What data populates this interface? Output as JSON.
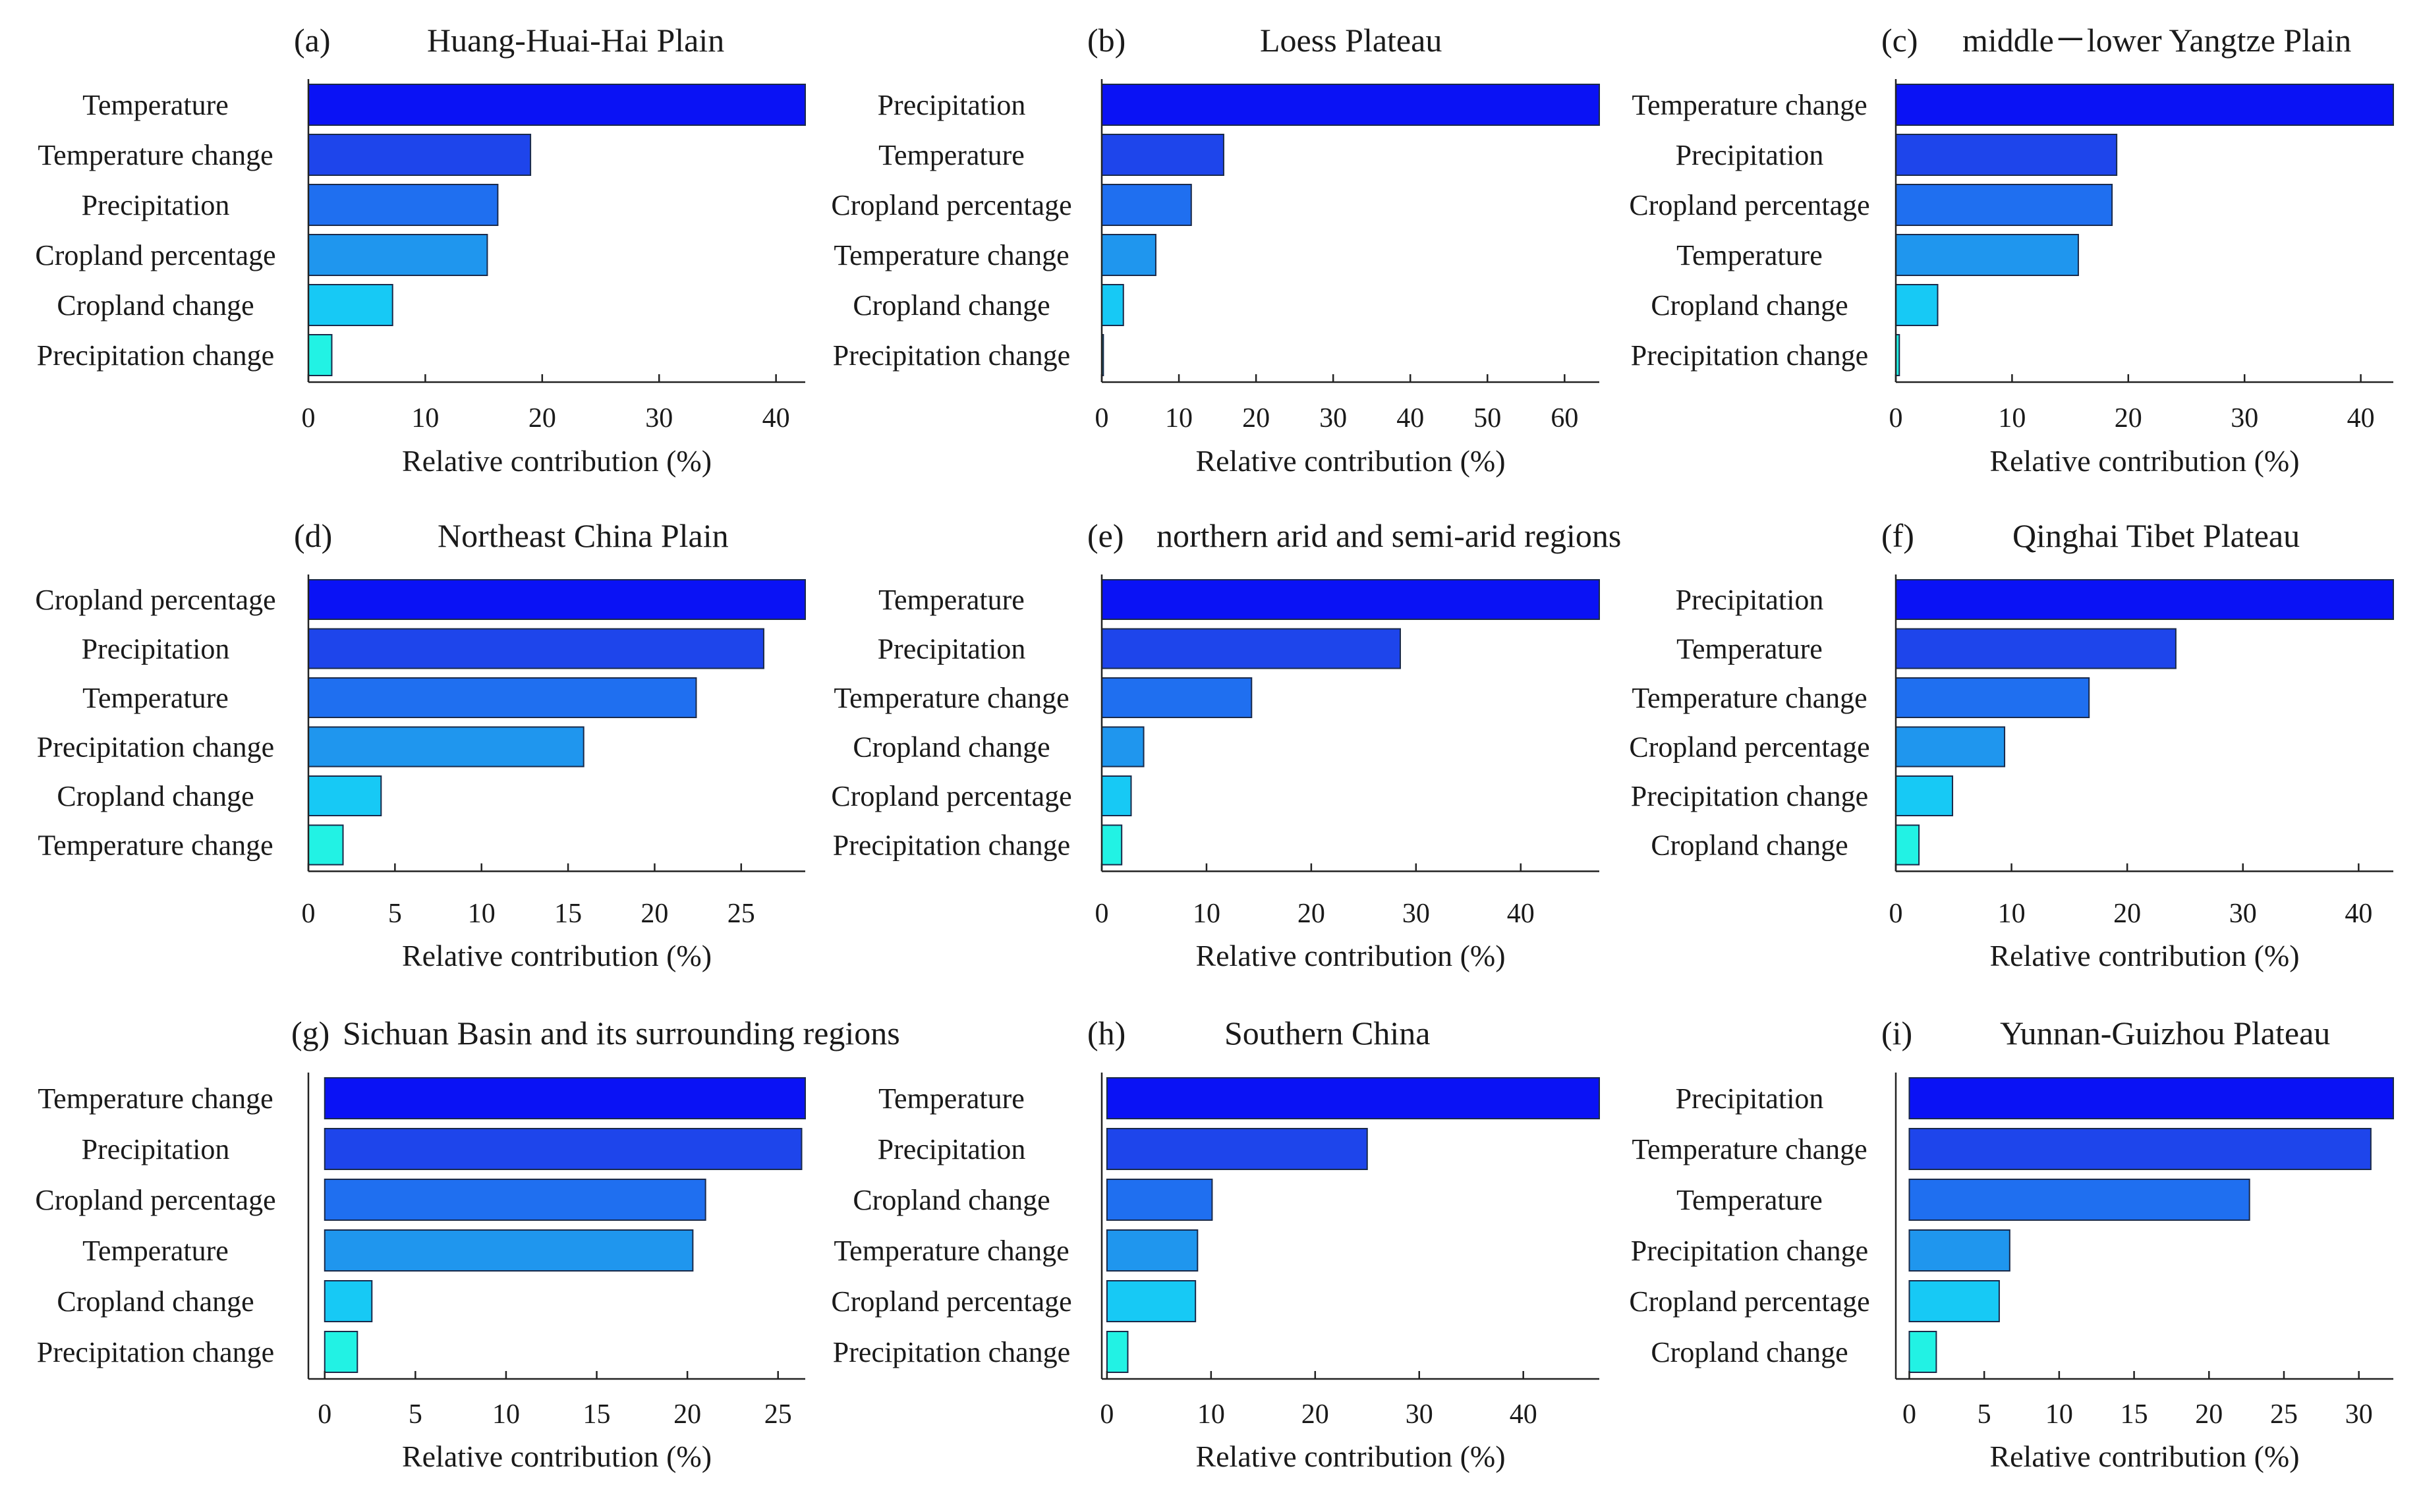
{
  "chart_data": [
    {
      "type": "bar",
      "orientation": "horizontal",
      "label": "(a)",
      "title": "Huang-Huai-Hai Plain",
      "categories": [
        "Temperature",
        "Temperature change",
        "Precipitation",
        "Cropland percentage",
        "Cropland change",
        "Precipitation change"
      ],
      "values": [
        42.5,
        19.0,
        16.2,
        15.3,
        7.2,
        2.0
      ],
      "xlabel": "Relative contribution (%)",
      "xticks": [
        "0",
        "10",
        "20",
        "30",
        "40"
      ],
      "xlim": [
        0,
        42.5
      ]
    },
    {
      "type": "bar",
      "orientation": "horizontal",
      "label": "(b)",
      "title": "Loess Plateau",
      "categories": [
        "Precipitation",
        "Temperature",
        "Cropland percentage",
        "Temperature change",
        "Cropland change",
        "Precipitation change"
      ],
      "values": [
        64.5,
        15.8,
        11.6,
        7.0,
        2.8,
        0.2
      ],
      "xlabel": "Relative contribution (%)",
      "xticks": [
        "0",
        "10",
        "20",
        "30",
        "40",
        "50",
        "60"
      ],
      "xlim": [
        0,
        64.5
      ]
    },
    {
      "type": "bar",
      "orientation": "horizontal",
      "label": "(c)",
      "title": "middle－lower Yangtze Plain",
      "categories": [
        "Temperature change",
        "Precipitation",
        "Cropland percentage",
        "Temperature",
        "Cropland change",
        "Precipitation change"
      ],
      "values": [
        42.8,
        19.0,
        18.6,
        15.7,
        3.6,
        0.3
      ],
      "xlabel": "Relative contribution (%)",
      "xticks": [
        "0",
        "10",
        "20",
        "30",
        "40"
      ],
      "xlim": [
        0,
        42.8
      ]
    },
    {
      "type": "bar",
      "orientation": "horizontal",
      "label": "(d)",
      "title": "Northeast China Plain",
      "categories": [
        "Cropland percentage",
        "Precipitation",
        "Temperature",
        "Precipitation change",
        "Cropland change",
        "Temperature change"
      ],
      "values": [
        28.7,
        26.3,
        22.4,
        15.9,
        4.2,
        2.0
      ],
      "xlabel": "Relative contribution (%)",
      "xticks": [
        "0",
        "5",
        "10",
        "15",
        "20",
        "25"
      ],
      "xlim": [
        0,
        28.7
      ]
    },
    {
      "type": "bar",
      "orientation": "horizontal",
      "label": "(e)",
      "title": "northern arid and semi-arid regions",
      "categories": [
        "Temperature",
        "Precipitation",
        "Temperature change",
        "Cropland change",
        "Cropland percentage",
        "Precipitation change"
      ],
      "values": [
        47.5,
        28.5,
        14.3,
        4.0,
        2.8,
        1.9
      ],
      "xlabel": "Relative contribution (%)",
      "xticks": [
        "0",
        "10",
        "20",
        "30",
        "40"
      ],
      "xlim": [
        0,
        47.5
      ]
    },
    {
      "type": "bar",
      "orientation": "horizontal",
      "label": "(f)",
      "title": "Qinghai Tibet Plateau",
      "categories": [
        "Precipitation",
        "Temperature",
        "Temperature change",
        "Cropland percentage",
        "Precipitation change",
        "Cropland change"
      ],
      "values": [
        43.0,
        24.2,
        16.7,
        9.4,
        4.9,
        2.0
      ],
      "xlabel": "Relative contribution (%)",
      "xticks": [
        "0",
        "10",
        "20",
        "30",
        "40"
      ],
      "xlim": [
        0,
        43.0
      ]
    },
    {
      "type": "bar",
      "orientation": "horizontal",
      "label": "(g)",
      "title": "Sichuan Basin and its surrounding regions",
      "categories": [
        "Temperature change",
        "Precipitation",
        "Cropland percentage",
        "Temperature",
        "Cropland change",
        "Precipitation change"
      ],
      "values": [
        26.5,
        26.3,
        21.0,
        20.3,
        2.6,
        1.8
      ],
      "xlabel": "Relative contribution (%)",
      "xticks": [
        "0",
        "5",
        "10",
        "15",
        "20",
        "25"
      ],
      "xlim": [
        -0.9,
        26.5
      ]
    },
    {
      "type": "bar",
      "orientation": "horizontal",
      "label": "(h)",
      "title": "Southern China",
      "categories": [
        "Temperature",
        "Precipitation",
        "Cropland change",
        "Temperature change",
        "Cropland percentage",
        "Precipitation change"
      ],
      "values": [
        47.3,
        25.0,
        10.1,
        8.7,
        8.5,
        2.0
      ],
      "xlabel": "Relative contribution (%)",
      "xticks": [
        "0",
        "10",
        "20",
        "30",
        "40"
      ],
      "xlim": [
        -0.5,
        47.3
      ]
    },
    {
      "type": "bar",
      "orientation": "horizontal",
      "label": "(i)",
      "title": "Yunnan-Guizhou Plateau",
      "categories": [
        "Precipitation",
        "Temperature change",
        "Temperature",
        "Precipitation change",
        "Cropland percentage",
        "Cropland change"
      ],
      "values": [
        32.3,
        30.8,
        22.7,
        6.7,
        6.0,
        1.8
      ],
      "xlabel": "Relative contribution (%)",
      "xticks": [
        "0",
        "5",
        "10",
        "15",
        "20",
        "25",
        "30"
      ],
      "xlim": [
        -0.9,
        32.3
      ]
    }
  ],
  "colors": {
    "rank": [
      "#0a12f5",
      "#1e45eb",
      "#1f6ff0",
      "#1f96ee",
      "#17c9f5",
      "#22f2e4"
    ],
    "bar_edge": "#1a2a4a",
    "axis": "#222222",
    "text": "#1a1a1a"
  }
}
